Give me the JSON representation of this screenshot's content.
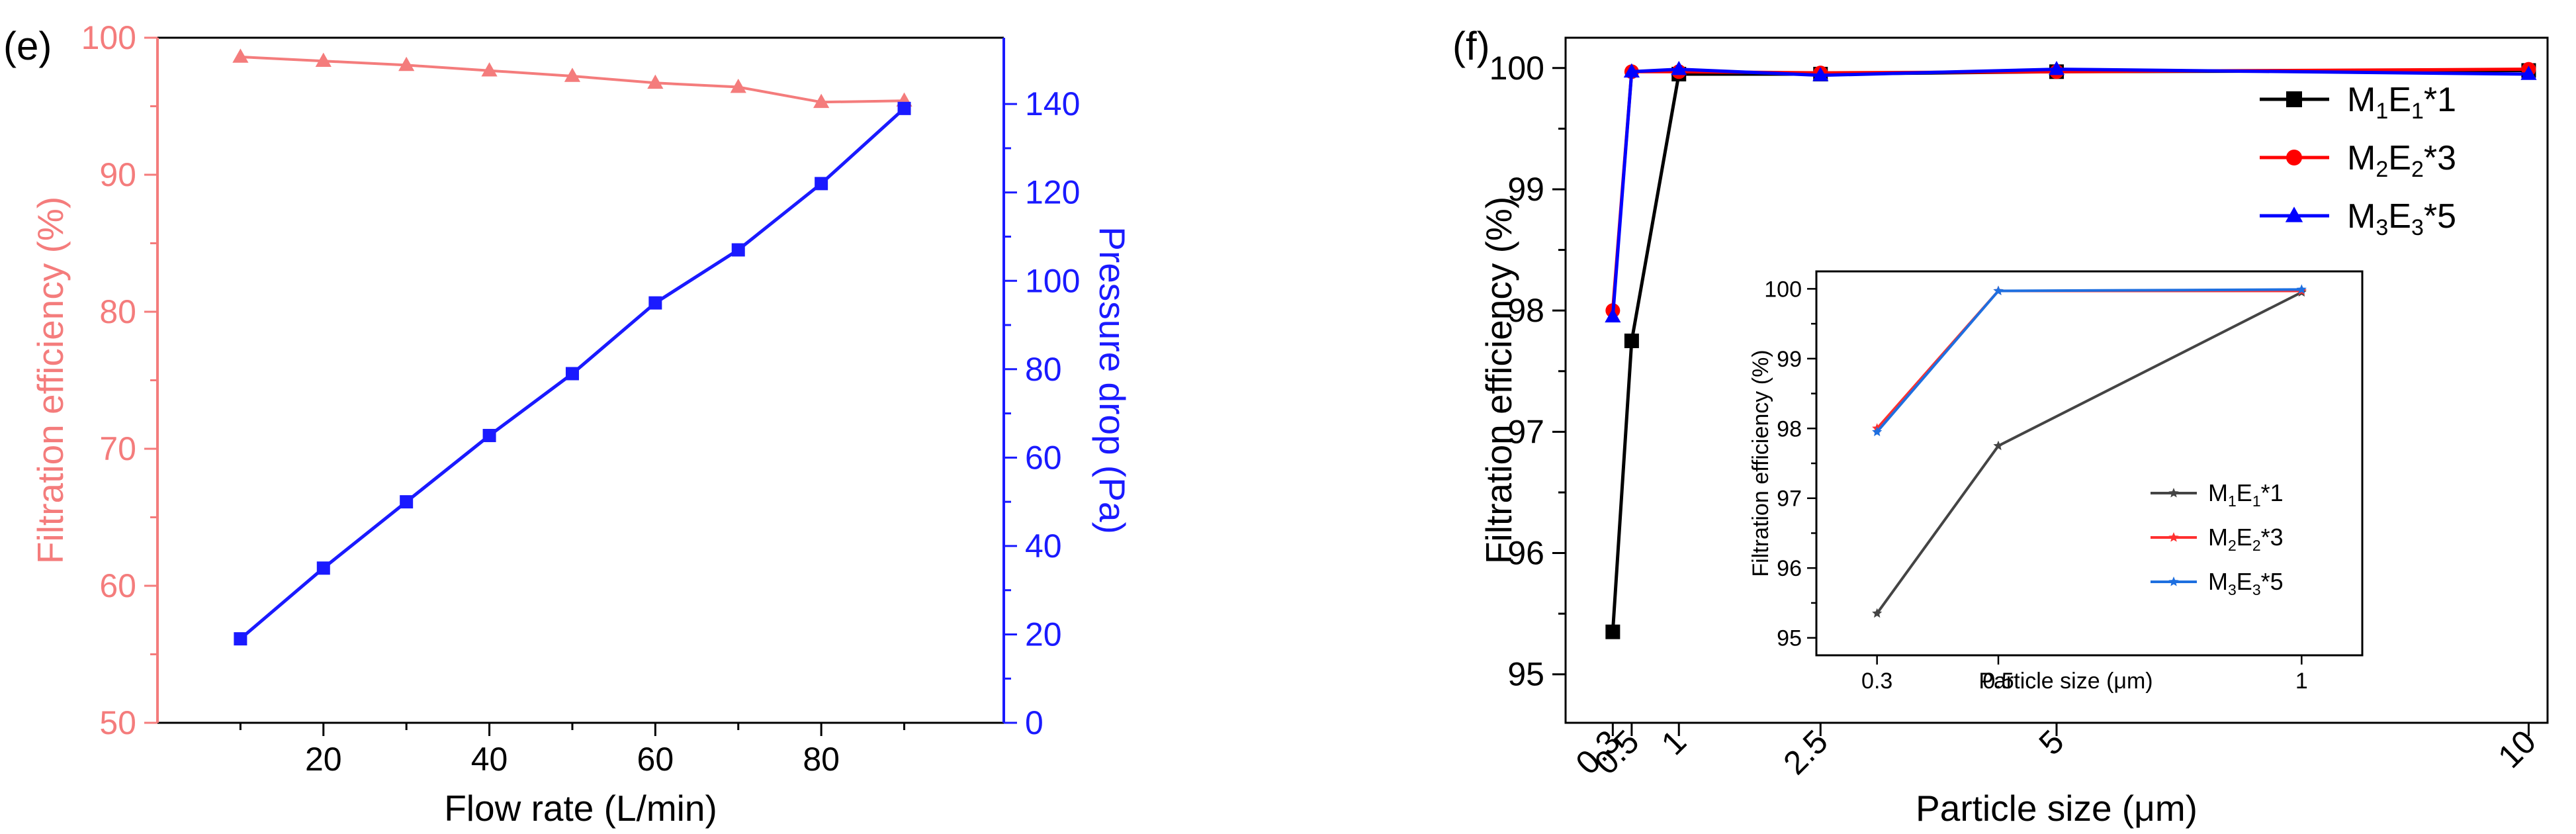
{
  "chart_data": [
    {
      "panel_label": "(e)",
      "type": "line",
      "title": "",
      "xlabel": "Flow rate (L/min)",
      "ylabel_left": "Filtration efficiency (%)",
      "ylabel_right": "Pressure drop (Pa)",
      "xlim": [
        0,
        102
      ],
      "ylim_left": [
        50,
        100
      ],
      "ylim_right": [
        0,
        155
      ],
      "x_ticks": [
        20,
        40,
        60,
        80
      ],
      "y_left_ticks": [
        50,
        60,
        70,
        80,
        90,
        100
      ],
      "y_right_ticks": [
        0,
        20,
        40,
        60,
        80,
        100,
        120,
        140
      ],
      "left_axis_color": "#f47c7c",
      "right_axis_color": "#1a1aff",
      "series": [
        {
          "name": "Filtration efficiency",
          "axis": "left",
          "color": "#f47c7c",
          "marker": "triangle",
          "x": [
            10,
            20,
            30,
            40,
            50,
            60,
            70,
            80,
            90
          ],
          "values": [
            98.6,
            98.3,
            98.0,
            97.6,
            97.2,
            96.7,
            96.4,
            95.3,
            95.4
          ]
        },
        {
          "name": "Pressure drop",
          "axis": "right",
          "color": "#1a1aff",
          "marker": "square",
          "x": [
            10,
            20,
            30,
            40,
            50,
            60,
            70,
            80,
            90
          ],
          "values": [
            19,
            35,
            50,
            65,
            79,
            95,
            107,
            122,
            139
          ]
        }
      ]
    },
    {
      "panel_label": "(f)",
      "type": "line",
      "title": "",
      "xlabel": "Particle size (μm)",
      "ylabel": "Filtration efficiency (%)",
      "xlim": [
        -0.2,
        10.2
      ],
      "ylim": [
        94.6,
        100.25
      ],
      "x_ticks": [
        0.3,
        0.5,
        1,
        2.5,
        5,
        10
      ],
      "x_tick_labels": [
        "0.3",
        "0.5",
        "1",
        "2.5",
        "5",
        "10"
      ],
      "y_ticks": [
        95,
        96,
        97,
        98,
        99,
        100
      ],
      "legend_position": "top-right",
      "series": [
        {
          "name": "M1E1*1",
          "legend": {
            "base1": "M",
            "sub1": "1",
            "base2": "E",
            "sub2": "1",
            "suffix": "*1"
          },
          "color": "#000000",
          "marker": "square",
          "x": [
            0.3,
            0.5,
            1,
            2.5,
            5,
            10
          ],
          "values": [
            95.35,
            97.75,
            99.95,
            99.95,
            99.97,
            99.98
          ]
        },
        {
          "name": "M2E2*3",
          "legend": {
            "base1": "M",
            "sub1": "2",
            "base2": "E",
            "sub2": "2",
            "suffix": "*3"
          },
          "color": "#ff0000",
          "marker": "circle",
          "x": [
            0.3,
            0.5,
            1,
            2.5,
            5,
            10
          ],
          "values": [
            98.0,
            99.97,
            99.97,
            99.96,
            99.97,
            99.99
          ]
        },
        {
          "name": "M3E3*5",
          "legend": {
            "base1": "M",
            "sub1": "3",
            "base2": "E",
            "sub2": "3",
            "suffix": "*5"
          },
          "color": "#0000ff",
          "marker": "triangle",
          "x": [
            0.3,
            0.5,
            1,
            2.5,
            5,
            10
          ],
          "values": [
            97.95,
            99.97,
            99.99,
            99.94,
            99.99,
            99.95
          ]
        }
      ],
      "inset": {
        "type": "line",
        "xlabel": "Particle size (μm)",
        "ylabel": "Filtration efficiency (%)",
        "xlim": [
          0.2,
          1.1
        ],
        "ylim": [
          94.75,
          100.25
        ],
        "x_ticks": [
          0.3,
          0.5,
          1
        ],
        "x_tick_labels": [
          "0.3",
          "0.5",
          "1"
        ],
        "y_ticks": [
          95,
          96,
          97,
          98,
          99,
          100
        ],
        "legend_position": "bottom-right",
        "series": [
          {
            "name": "M1E1*1",
            "legend": {
              "base1": "M",
              "sub1": "1",
              "base2": "E",
              "sub2": "1",
              "suffix": "*1"
            },
            "color": "#444444",
            "marker": "star",
            "x": [
              0.3,
              0.5,
              1
            ],
            "values": [
              95.35,
              97.75,
              99.95
            ]
          },
          {
            "name": "M2E2*3",
            "legend": {
              "base1": "M",
              "sub1": "2",
              "base2": "E",
              "sub2": "2",
              "suffix": "*3"
            },
            "color": "#ff3030",
            "marker": "star",
            "x": [
              0.3,
              0.5,
              1
            ],
            "values": [
              98.0,
              99.97,
              99.97
            ]
          },
          {
            "name": "M3E3*5",
            "legend": {
              "base1": "M",
              "sub1": "3",
              "base2": "E",
              "sub2": "3",
              "suffix": "*5"
            },
            "color": "#1e6fe0",
            "marker": "star",
            "x": [
              0.3,
              0.5,
              1
            ],
            "values": [
              97.95,
              99.97,
              99.99
            ]
          }
        ]
      }
    }
  ]
}
